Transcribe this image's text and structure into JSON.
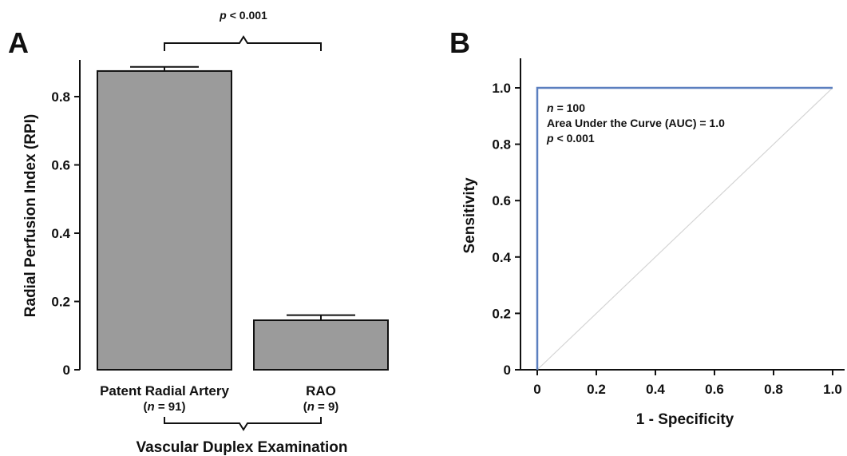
{
  "panels": {
    "a_letter": "A",
    "b_letter": "B"
  },
  "chart_data": [
    {
      "type": "bar",
      "panel": "A",
      "title": "",
      "categories": [
        "Patent Radial Artery",
        "RAO"
      ],
      "category_n": [
        "91",
        "9"
      ],
      "values": [
        0.875,
        0.145
      ],
      "error_upper": [
        0.887,
        0.16
      ],
      "ylabel": "Radial Perfusion Index (RPI)",
      "xlabel": "Vascular Duplex Examination",
      "ylim": [
        0,
        0.9
      ],
      "yticks": [
        0,
        0.2,
        0.4,
        0.6,
        0.8
      ],
      "ytick_labels": [
        "0",
        "0.2",
        "0.4",
        "0.6",
        "0.8"
      ],
      "significance": {
        "p_symbol": "p",
        "text": "< 0.001"
      },
      "n_symbol": "n",
      "bar_color": "#9b9b9b",
      "grid": false
    },
    {
      "type": "line",
      "panel": "B",
      "title": "",
      "xlabel": "1 - Specificity",
      "ylabel": "Sensitivity",
      "xlim": [
        0,
        1
      ],
      "ylim": [
        0,
        1
      ],
      "xticks": [
        0,
        0.2,
        0.4,
        0.6,
        0.8,
        1.0
      ],
      "xtick_labels": [
        "0",
        "0.2",
        "0.4",
        "0.6",
        "0.8",
        "1.0"
      ],
      "yticks": [
        0,
        0.2,
        0.4,
        0.6,
        0.8,
        1.0
      ],
      "ytick_labels": [
        "0",
        "0.2",
        "0.4",
        "0.6",
        "0.8",
        "1.0"
      ],
      "series": [
        {
          "x": [
            0,
            0,
            1
          ],
          "y": [
            0,
            1,
            1
          ],
          "color": "#5b7fbf"
        },
        {
          "x": [
            0,
            1
          ],
          "y": [
            0,
            1
          ],
          "color": "#d4d4d4"
        }
      ],
      "annotations": {
        "n_symbol": "n",
        "n_text": "= 100",
        "auc_text": "Area Under the Curve (AUC)  = 1.0",
        "p_symbol": "p",
        "p_text": "< 0.001"
      },
      "grid": false
    }
  ]
}
